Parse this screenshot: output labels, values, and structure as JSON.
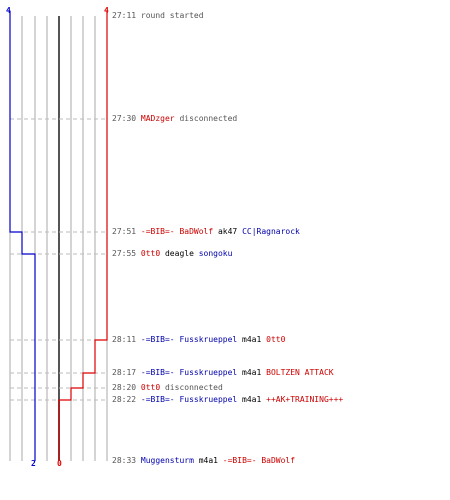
{
  "colors": {
    "blue": "#0000cc",
    "red": "#dd0000",
    "grid": "#aaaaaa",
    "center": "#555555",
    "dash": "#bbbbbb",
    "text_gray": "#555555"
  },
  "scores": {
    "blue_top": "4",
    "red_top": "4",
    "blue_bottom": "2",
    "red_bottom": "0"
  },
  "events": [
    {
      "time": "27:11",
      "parts": [
        {
          "text": "round started",
          "color": "msg"
        }
      ]
    },
    {
      "time": "27:30",
      "parts": [
        {
          "text": "MADzger",
          "color": "red"
        },
        {
          "text": " disconnected",
          "color": "msg"
        }
      ]
    },
    {
      "time": "27:51",
      "parts": [
        {
          "text": "-=BIB=- BaDWolf",
          "color": "red"
        },
        {
          "text": " ak47 ",
          "color": "blk"
        },
        {
          "text": "CC|Ragnarock",
          "color": "blue"
        }
      ]
    },
    {
      "time": "27:55",
      "parts": [
        {
          "text": "0tt0",
          "color": "red"
        },
        {
          "text": " deagle ",
          "color": "blk"
        },
        {
          "text": "songoku",
          "color": "blue"
        }
      ]
    },
    {
      "time": "28:11",
      "parts": [
        {
          "text": "-=BIB=- Fusskrueppel",
          "color": "blue"
        },
        {
          "text": " m4a1 ",
          "color": "blk"
        },
        {
          "text": "0tt0",
          "color": "red"
        }
      ]
    },
    {
      "time": "28:17",
      "parts": [
        {
          "text": "-=BIB=- Fusskrueppel",
          "color": "blue"
        },
        {
          "text": " m4a1 ",
          "color": "blk"
        },
        {
          "text": "BOLTZEN ATTACK",
          "color": "red"
        }
      ]
    },
    {
      "time": "28:20",
      "parts": [
        {
          "text": "0tt0",
          "color": "red"
        },
        {
          "text": " disconnected",
          "color": "msg"
        }
      ]
    },
    {
      "time": "28:22",
      "parts": [
        {
          "text": "-=BIB=- Fusskrueppel",
          "color": "blue"
        },
        {
          "text": " m4a1 ",
          "color": "blk"
        },
        {
          "text": "++AK+TRAINING+++",
          "color": "red"
        }
      ]
    },
    {
      "time": "28:33",
      "parts": [
        {
          "text": "Muggensturm",
          "color": "blue"
        },
        {
          "text": " m4a1 ",
          "color": "blk"
        },
        {
          "text": "-=BIB=- BaDWolf",
          "color": "red"
        }
      ]
    }
  ]
}
